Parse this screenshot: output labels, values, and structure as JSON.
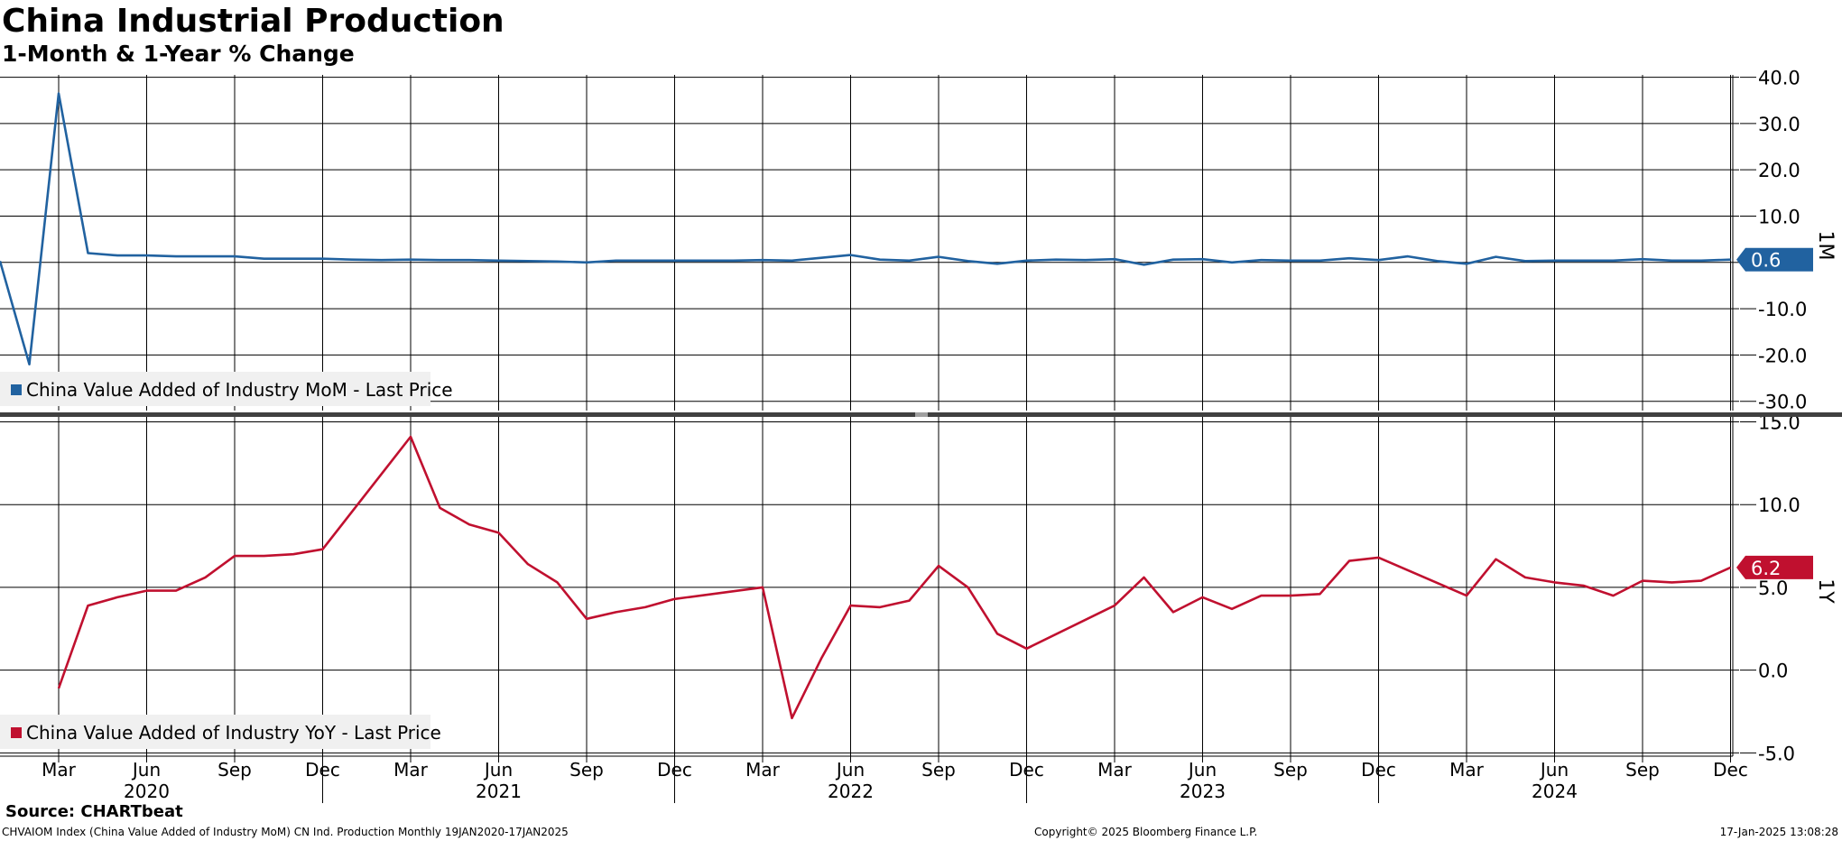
{
  "header": {
    "title": "China Industrial Production",
    "subtitle": "1-Month & 1-Year % Change"
  },
  "footer": {
    "source": "Source: CHARTbeat",
    "index_info": "CHVAIOM Index (China Value Added of Industry MoM) CN Ind. Production  Monthly 19JAN2020-17JAN2025",
    "copyright": "Copyright© 2025 Bloomberg Finance L.P.",
    "timestamp": "17-Jan-2025 13:08:28"
  },
  "colors": {
    "mom": "#2162a0",
    "yoy": "#c0102f",
    "grid": "#000000",
    "divider": "#404040",
    "legend_bg": "#f0f0f0"
  },
  "chart_data": [
    {
      "type": "line",
      "panel": "top",
      "axis_tag": "1M",
      "last_value_label": "0.6",
      "legend": "China Value Added of Industry MoM - Last Price",
      "ylim": [
        -32,
        40.5
      ],
      "yticks": [
        {
          "v": 40,
          "label": "40.0"
        },
        {
          "v": 30,
          "label": "30.0"
        },
        {
          "v": 20,
          "label": "20.0"
        },
        {
          "v": 10,
          "label": "10.0"
        },
        {
          "v": 0,
          "label": ""
        },
        {
          "v": -10,
          "label": "-10.0"
        },
        {
          "v": -20,
          "label": "-20.0"
        },
        {
          "v": -30,
          "label": "-30.0"
        }
      ],
      "series": [
        {
          "name": "China Value Added of Industry MoM",
          "color": "#2162a0",
          "x": [
            "2020-01",
            "2020-02",
            "2020-03",
            "2020-04",
            "2020-05",
            "2020-06",
            "2020-07",
            "2020-08",
            "2020-09",
            "2020-10",
            "2020-11",
            "2020-12",
            "2021-01",
            "2021-02",
            "2021-03",
            "2021-04",
            "2021-05",
            "2021-06",
            "2021-07",
            "2021-08",
            "2021-09",
            "2021-10",
            "2021-11",
            "2021-12",
            "2022-01",
            "2022-02",
            "2022-03",
            "2022-04",
            "2022-05",
            "2022-06",
            "2022-07",
            "2022-08",
            "2022-09",
            "2022-10",
            "2022-11",
            "2022-12",
            "2023-01",
            "2023-02",
            "2023-03",
            "2023-04",
            "2023-05",
            "2023-06",
            "2023-07",
            "2023-08",
            "2023-09",
            "2023-10",
            "2023-11",
            "2023-12",
            "2024-01",
            "2024-02",
            "2024-03",
            "2024-04",
            "2024-05",
            "2024-06",
            "2024-07",
            "2024-08",
            "2024-09",
            "2024-10",
            "2024-11",
            "2024-12"
          ],
          "values": [
            0.3,
            -22.0,
            36.5,
            2.0,
            1.5,
            1.5,
            1.3,
            1.3,
            1.3,
            0.8,
            0.8,
            0.8,
            0.6,
            0.5,
            0.6,
            0.5,
            0.5,
            0.4,
            0.3,
            0.2,
            0.0,
            0.4,
            0.4,
            0.4,
            0.4,
            0.4,
            0.5,
            0.4,
            1.0,
            1.6,
            0.6,
            0.4,
            1.2,
            0.3,
            -0.3,
            0.4,
            0.6,
            0.5,
            0.7,
            -0.5,
            0.6,
            0.7,
            0.0,
            0.5,
            0.4,
            0.4,
            0.9,
            0.5,
            1.3,
            0.3,
            -0.3,
            1.2,
            0.3,
            0.4,
            0.4,
            0.4,
            0.7,
            0.4,
            0.4,
            0.6
          ]
        }
      ]
    },
    {
      "type": "line",
      "panel": "bottom",
      "axis_tag": "1Y",
      "last_value_label": "6.2",
      "legend": "China Value Added of Industry YoY - Last Price",
      "ylim": [
        -5.2,
        15.3
      ],
      "yticks": [
        {
          "v": 15,
          "label": "15.0"
        },
        {
          "v": 10,
          "label": "10.0"
        },
        {
          "v": 5,
          "label": "5.0"
        },
        {
          "v": 0,
          "label": "0.0"
        },
        {
          "v": -5,
          "label": "-5.0"
        }
      ],
      "series": [
        {
          "name": "China Value Added of Industry YoY",
          "color": "#c0102f",
          "x": [
            "2020-03",
            "2020-04",
            "2020-05",
            "2020-06",
            "2020-07",
            "2020-08",
            "2020-09",
            "2020-10",
            "2020-11",
            "2020-12",
            "2021-03",
            "2021-04",
            "2021-05",
            "2021-06",
            "2021-07",
            "2021-08",
            "2021-09",
            "2021-10",
            "2021-11",
            "2021-12",
            "2022-03",
            "2022-04",
            "2022-05",
            "2022-06",
            "2022-07",
            "2022-08",
            "2022-09",
            "2022-10",
            "2022-11",
            "2022-12",
            "2023-03",
            "2023-04",
            "2023-05",
            "2023-06",
            "2023-07",
            "2023-08",
            "2023-09",
            "2023-10",
            "2023-11",
            "2023-12",
            "2024-03",
            "2024-04",
            "2024-05",
            "2024-06",
            "2024-07",
            "2024-08",
            "2024-09",
            "2024-10",
            "2024-11",
            "2024-12"
          ],
          "values": [
            -1.1,
            3.9,
            4.4,
            4.8,
            4.8,
            5.6,
            6.9,
            6.9,
            7.0,
            7.3,
            14.1,
            9.8,
            8.8,
            8.3,
            6.4,
            5.3,
            3.1,
            3.5,
            3.8,
            4.3,
            5.0,
            -2.9,
            0.7,
            3.9,
            3.8,
            4.2,
            6.3,
            5.0,
            2.2,
            1.3,
            3.9,
            5.6,
            3.5,
            4.4,
            3.7,
            4.5,
            4.5,
            4.6,
            6.6,
            6.8,
            4.5,
            6.7,
            5.6,
            5.3,
            5.1,
            4.5,
            5.4,
            5.3,
            5.4,
            6.2
          ]
        }
      ]
    }
  ],
  "x_axis": {
    "months": [
      {
        "ym": "2020-03",
        "label": "Mar"
      },
      {
        "ym": "2020-06",
        "label": "Jun"
      },
      {
        "ym": "2020-09",
        "label": "Sep"
      },
      {
        "ym": "2020-12",
        "label": "Dec"
      },
      {
        "ym": "2021-03",
        "label": "Mar"
      },
      {
        "ym": "2021-06",
        "label": "Jun"
      },
      {
        "ym": "2021-09",
        "label": "Sep"
      },
      {
        "ym": "2021-12",
        "label": "Dec"
      },
      {
        "ym": "2022-03",
        "label": "Mar"
      },
      {
        "ym": "2022-06",
        "label": "Jun"
      },
      {
        "ym": "2022-09",
        "label": "Sep"
      },
      {
        "ym": "2022-12",
        "label": "Dec"
      },
      {
        "ym": "2023-03",
        "label": "Mar"
      },
      {
        "ym": "2023-06",
        "label": "Jun"
      },
      {
        "ym": "2023-09",
        "label": "Sep"
      },
      {
        "ym": "2023-12",
        "label": "Dec"
      },
      {
        "ym": "2024-03",
        "label": "Mar"
      },
      {
        "ym": "2024-06",
        "label": "Jun"
      },
      {
        "ym": "2024-09",
        "label": "Sep"
      },
      {
        "ym": "2024-12",
        "label": "Dec"
      }
    ],
    "years": [
      {
        "ym": "2020-06",
        "label": "2020"
      },
      {
        "ym": "2021-06",
        "label": "2021"
      },
      {
        "ym": "2022-06",
        "label": "2022"
      },
      {
        "ym": "2023-06",
        "label": "2023"
      },
      {
        "ym": "2024-06",
        "label": "2024"
      }
    ],
    "year_separators": [
      "2021-01",
      "2022-01",
      "2023-01",
      "2024-01"
    ]
  }
}
